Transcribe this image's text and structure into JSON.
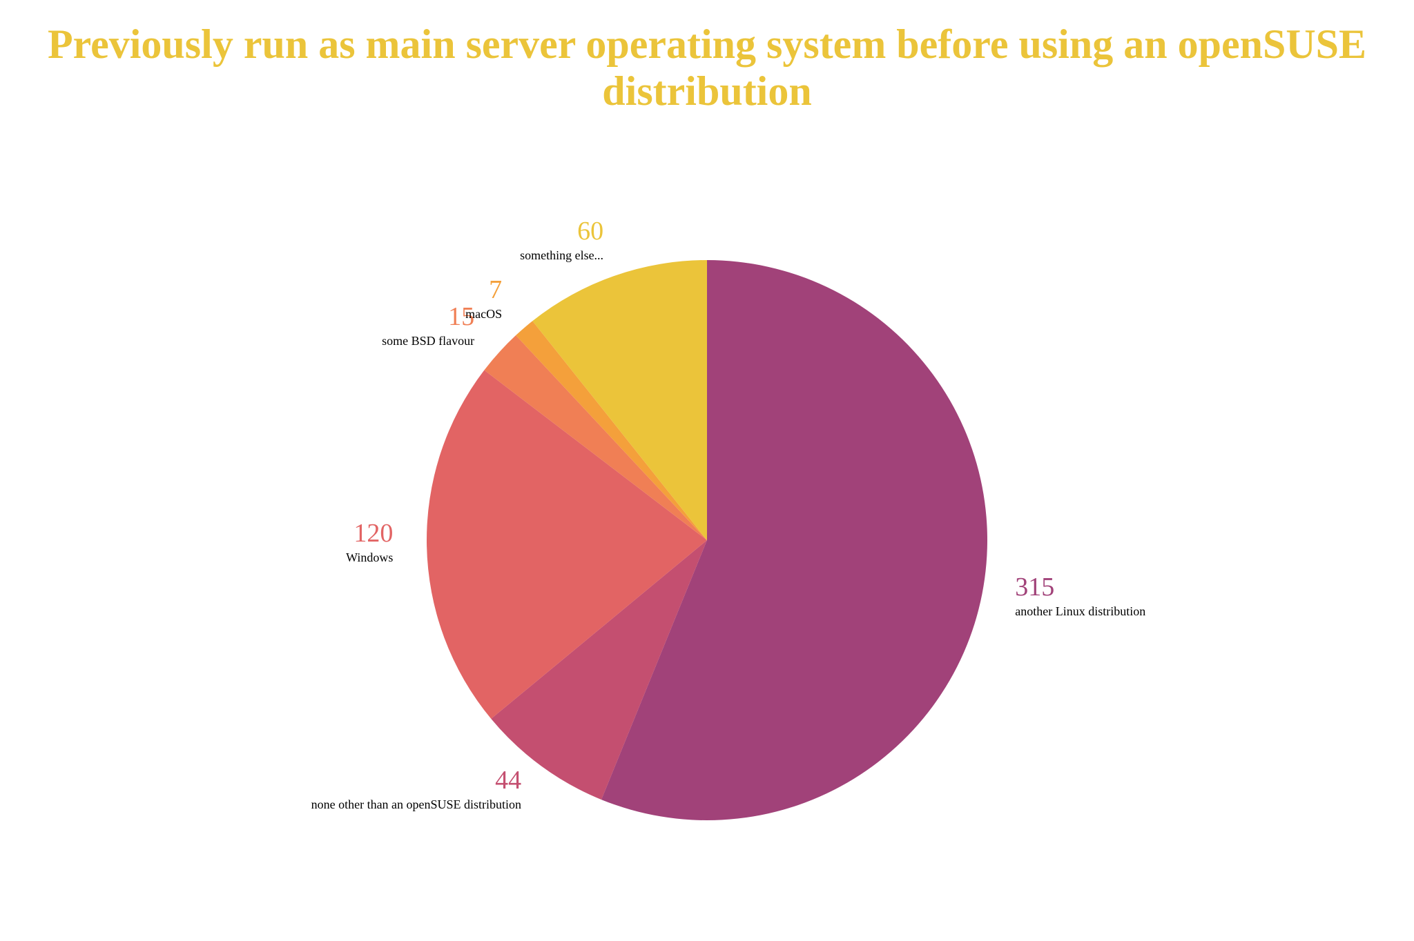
{
  "chart_data": {
    "type": "pie",
    "title": "Previously run as main server operating system before using an openSUSE distribution",
    "categories": [
      "another Linux distribution",
      "none other than an openSUSE distribution",
      "Windows",
      "some BSD flavour",
      "macOS",
      "something else..."
    ],
    "values": [
      315,
      44,
      120,
      15,
      7,
      60
    ],
    "colors": [
      "#a14279",
      "#c44f70",
      "#e26464",
      "#f07f55",
      "#f4a03b",
      "#ebc43a"
    ],
    "title_color": "#ebc43a"
  }
}
